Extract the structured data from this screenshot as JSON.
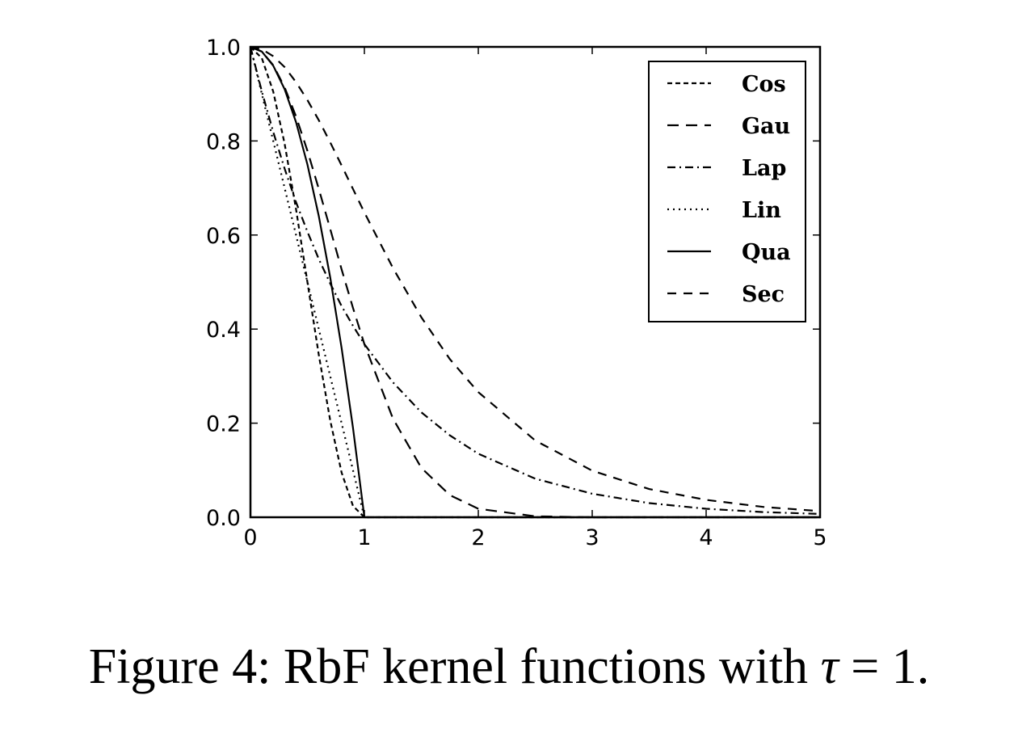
{
  "chart_data": {
    "type": "line",
    "xlim": [
      0,
      5
    ],
    "ylim": [
      0,
      1
    ],
    "xticks": [
      "0",
      "1",
      "2",
      "3",
      "4",
      "5"
    ],
    "yticks": [
      "0.0",
      "0.2",
      "0.4",
      "0.6",
      "0.8",
      "1.0"
    ],
    "grid": false,
    "legend_position": "top-right",
    "x": [
      0,
      0.1,
      0.2,
      0.3,
      0.4,
      0.5,
      0.6,
      0.7,
      0.8,
      0.9,
      1.0,
      1.25,
      1.5,
      1.75,
      2.0,
      2.5,
      3.0,
      3.5,
      4.0,
      4.5,
      5.0
    ],
    "series": [
      {
        "name": "Cos",
        "dash": "6,4",
        "values": [
          1.0,
          0.976,
          0.905,
          0.794,
          0.655,
          0.5,
          0.345,
          0.206,
          0.095,
          0.024,
          0,
          0,
          0,
          0,
          0,
          0,
          0,
          0,
          0,
          0,
          0
        ]
      },
      {
        "name": "Gau",
        "dash": "14,9",
        "values": [
          1.0,
          0.99,
          0.961,
          0.914,
          0.852,
          0.779,
          0.698,
          0.613,
          0.527,
          0.445,
          0.368,
          0.21,
          0.105,
          0.047,
          0.018,
          0.002,
          0,
          0,
          0,
          0,
          0
        ]
      },
      {
        "name": "Lap",
        "dash": "10,5,2,5",
        "values": [
          1.0,
          0.905,
          0.819,
          0.741,
          0.67,
          0.607,
          0.549,
          0.497,
          0.449,
          0.407,
          0.368,
          0.287,
          0.223,
          0.174,
          0.135,
          0.082,
          0.05,
          0.03,
          0.018,
          0.011,
          0.007
        ]
      },
      {
        "name": "Lin",
        "dash": "2,5",
        "values": [
          1.0,
          0.9,
          0.8,
          0.7,
          0.6,
          0.5,
          0.4,
          0.3,
          0.2,
          0.1,
          0,
          0,
          0,
          0,
          0,
          0,
          0,
          0,
          0,
          0,
          0
        ]
      },
      {
        "name": "Qua",
        "dash": "",
        "values": [
          1.0,
          0.99,
          0.96,
          0.91,
          0.84,
          0.75,
          0.64,
          0.51,
          0.36,
          0.19,
          0,
          0,
          0,
          0,
          0,
          0,
          0,
          0,
          0,
          0,
          0
        ]
      },
      {
        "name": "Sec",
        "dash": "11,9",
        "values": [
          1.0,
          0.995,
          0.98,
          0.957,
          0.925,
          0.887,
          0.844,
          0.797,
          0.748,
          0.698,
          0.648,
          0.53,
          0.425,
          0.336,
          0.266,
          0.163,
          0.099,
          0.06,
          0.037,
          0.022,
          0.013
        ]
      }
    ]
  },
  "caption": {
    "prefix": "Figure 4: RbF kernel functions with ",
    "math": "τ",
    "suffix": " = 1."
  }
}
